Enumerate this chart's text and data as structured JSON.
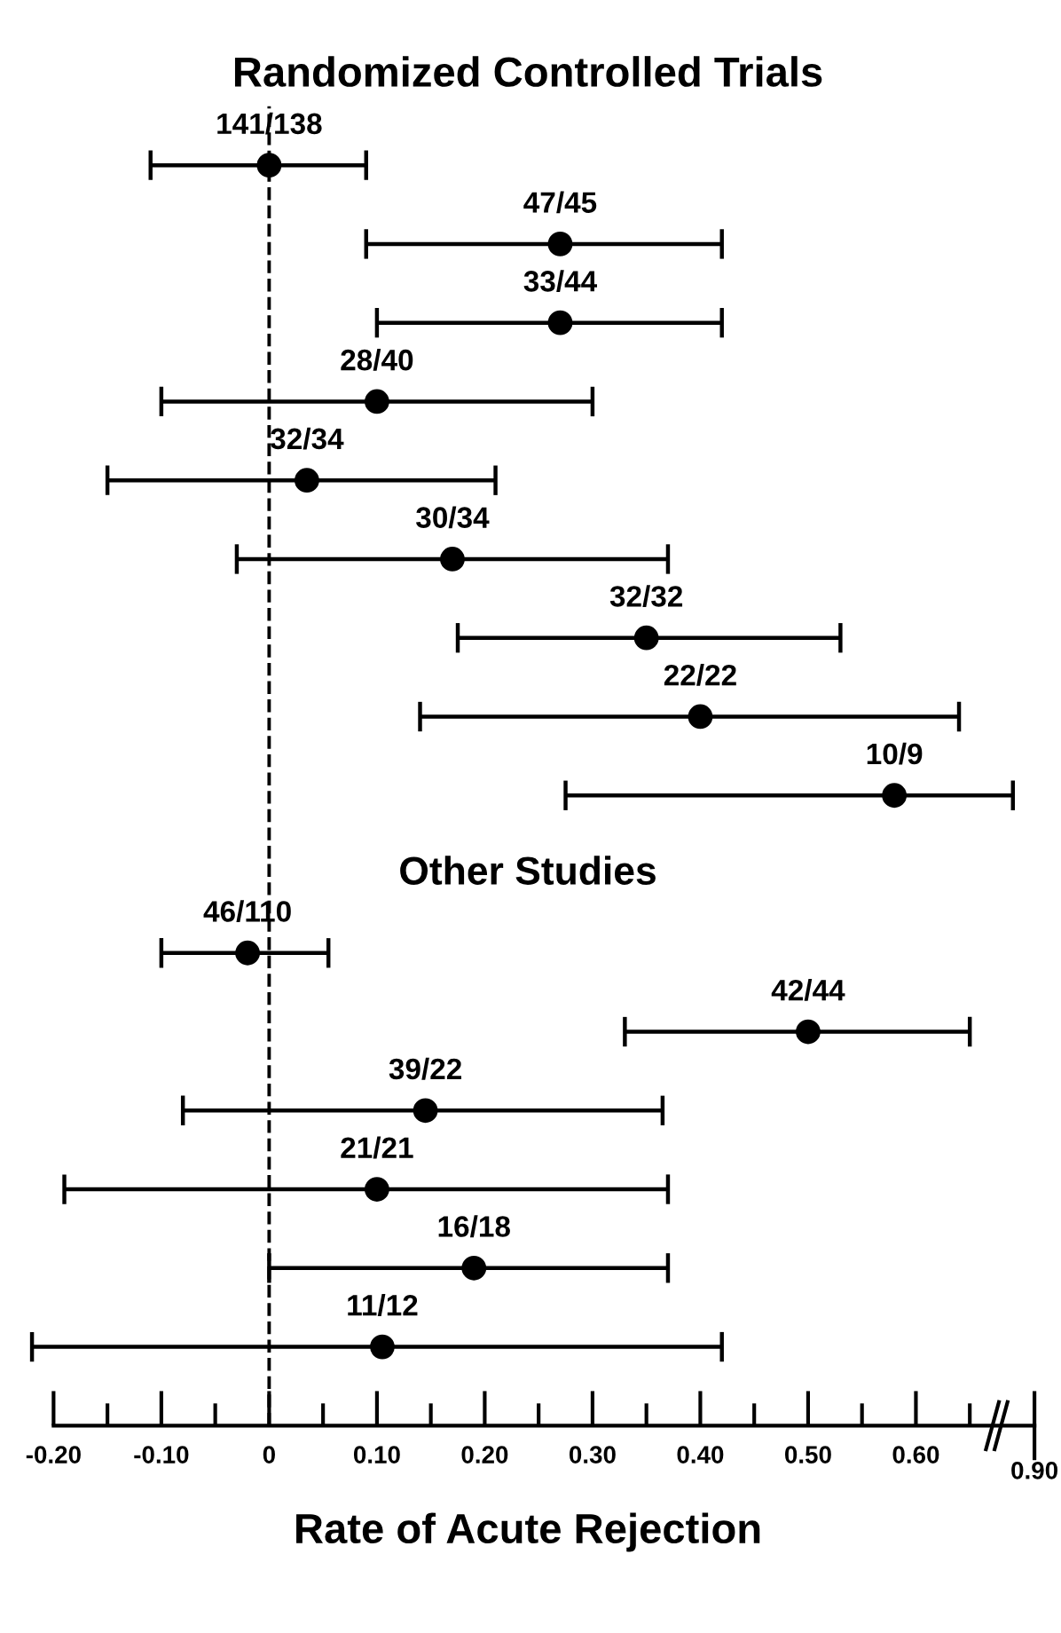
{
  "chart_data": {
    "type": "scatter",
    "orientation": "horizontal",
    "title": "Randomized Controlled Trials",
    "xlabel": "Rate of Acute Rejection",
    "annotations": [
      "Other Studies",
      "0.90"
    ],
    "categories": [
      "141/138",
      "47/45",
      "33/44",
      "28/40",
      "32/34",
      "30/34",
      "32/32",
      "22/22",
      "10/9",
      null,
      "46/110",
      "42/44",
      "39/22",
      "21/21",
      "16/18",
      "11/12"
    ],
    "values": [
      0.0,
      0.27,
      0.27,
      0.1,
      0.035,
      0.17,
      0.35,
      0.4,
      0.58,
      null,
      -0.02,
      0.5,
      0.145,
      0.1,
      0.19,
      0.105
    ],
    "errors": [
      [
        -0.11,
        0.09
      ],
      [
        0.09,
        0.42
      ],
      [
        0.1,
        0.42
      ],
      [
        -0.1,
        0.3
      ],
      [
        -0.15,
        0.21
      ],
      [
        -0.03,
        0.37
      ],
      [
        0.175,
        0.53
      ],
      [
        0.14,
        0.64
      ],
      [
        0.275,
        0.69
      ],
      null,
      [
        -0.1,
        0.055
      ],
      [
        0.33,
        0.65
      ],
      [
        -0.08,
        0.365
      ],
      [
        -0.19,
        0.37
      ],
      [
        0.0,
        0.37
      ],
      [
        -0.22,
        0.42
      ]
    ],
    "color": "#000000",
    "marker": "circle",
    "grid": false,
    "xlim": [
      -0.23,
      0.71
    ],
    "xticks": [
      {
        "value": -0.2,
        "label": "-0.20"
      },
      {
        "value": -0.15,
        "label": null
      },
      {
        "value": -0.1,
        "label": "-0.10"
      },
      {
        "value": -0.05,
        "label": null
      },
      0,
      {
        "value": 0.05,
        "label": null
      },
      {
        "value": 0.1,
        "label": "0.10"
      },
      {
        "value": 0.15,
        "label": null
      },
      {
        "value": 0.2,
        "label": "0.20"
      },
      {
        "value": 0.25,
        "label": null
      },
      {
        "value": 0.3,
        "label": "0.30"
      },
      {
        "value": 0.35,
        "label": null
      },
      {
        "value": 0.4,
        "label": "0.40"
      },
      {
        "value": 0.45,
        "label": null
      },
      {
        "value": 0.5,
        "label": "0.50"
      },
      {
        "value": 0.55,
        "label": null
      },
      {
        "value": 0.6,
        "label": "0.60"
      },
      {
        "value": 0.65,
        "label": null
      }
    ],
    "ref_lines": [
      {
        "axis": "x",
        "value": 0,
        "line_style": "dashed",
        "color": "#000000"
      }
    ],
    "tick_labels": "x"
  }
}
